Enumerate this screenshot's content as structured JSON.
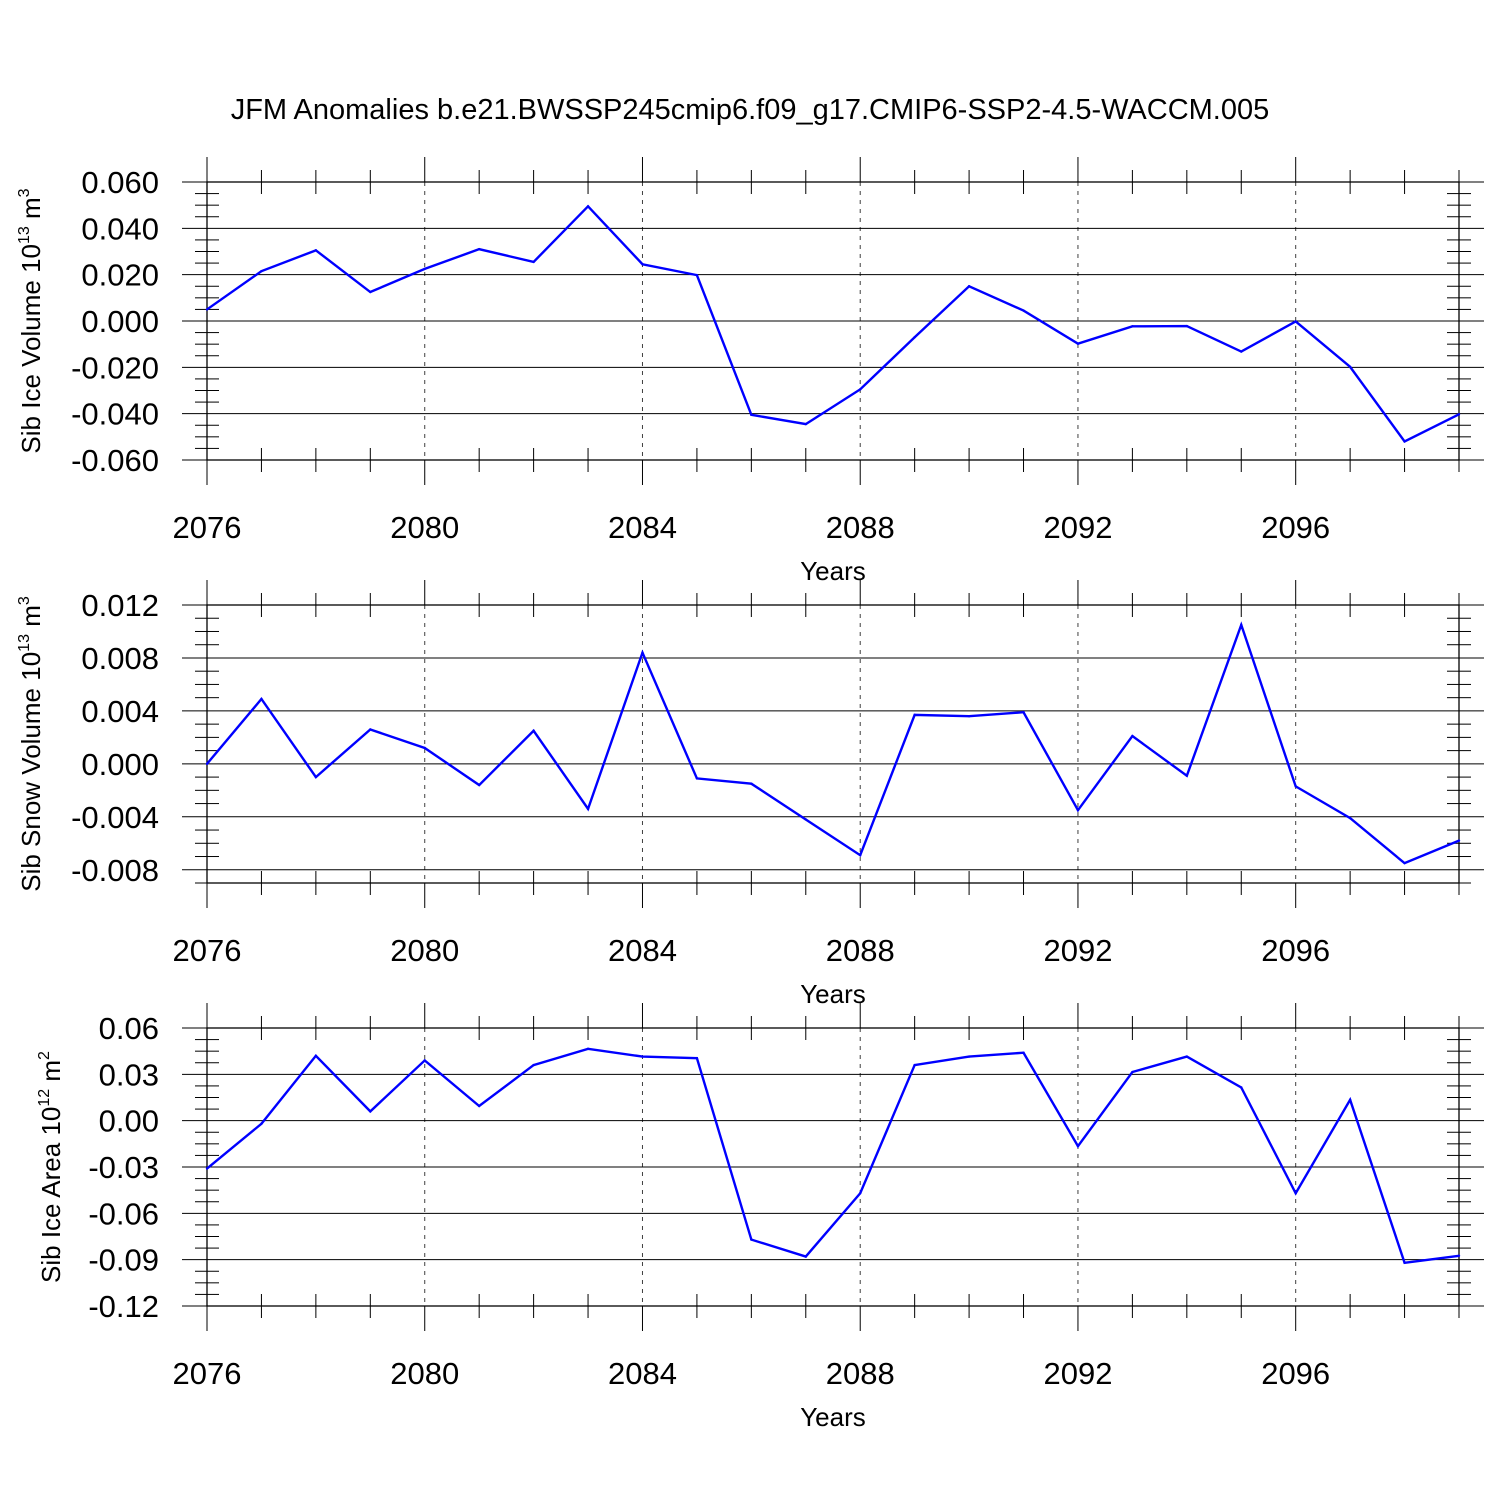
{
  "title": "JFM Anomalies b.e21.BWSSP245cmip6.f09_g17.CMIP6-SSP2-4.5-WACCM.005",
  "colors": {
    "line": "#0000ff",
    "axes": "#000000",
    "background": "#ffffff"
  },
  "chart_data": [
    {
      "type": "line",
      "ylabel": "Sib Ice Volume 10",
      "ylabel_exp": "13",
      "ylabel_unit": " m",
      "ylabel_unit_exp": "3",
      "xlabel": "Years",
      "xlim": [
        2076,
        2099
      ],
      "ylim": [
        -0.06,
        0.06
      ],
      "xticks": [
        2076,
        2080,
        2084,
        2088,
        2092,
        2096
      ],
      "xtick_labels": [
        "2076",
        "2080",
        "2084",
        "2088",
        "2092",
        "2096"
      ],
      "yticks": [
        0.06,
        0.04,
        0.02,
        0.0,
        -0.02,
        -0.04,
        -0.06
      ],
      "ytick_labels": [
        "0.060",
        "0.040",
        "0.020",
        "0.000",
        "-0.020",
        "-0.040",
        "-0.060"
      ],
      "x": [
        2076,
        2077,
        2078,
        2079,
        2080,
        2081,
        2082,
        2083,
        2084,
        2085,
        2086,
        2087,
        2088,
        2089,
        2090,
        2091,
        2092,
        2093,
        2094,
        2095,
        2096,
        2097,
        2098,
        2099
      ],
      "series": [
        {
          "name": "Sib Ice Volume",
          "values": [
            0.005,
            0.0215,
            0.0305,
            0.0125,
            0.0225,
            0.031,
            0.0255,
            0.0495,
            0.0245,
            0.0198,
            -0.0405,
            -0.0445,
            -0.0295,
            -0.007,
            0.015,
            0.0045,
            -0.0098,
            -0.0023,
            -0.0022,
            -0.0132,
            -0.0002,
            -0.0198,
            -0.052,
            -0.0403
          ]
        }
      ]
    },
    {
      "type": "line",
      "ylabel": "Sib Snow Volume 10",
      "ylabel_exp": "13",
      "ylabel_unit": " m",
      "ylabel_unit_exp": "3",
      "xlabel": "Years",
      "xlim": [
        2076,
        2099
      ],
      "ylim": [
        -0.009,
        0.012
      ],
      "xticks": [
        2076,
        2080,
        2084,
        2088,
        2092,
        2096
      ],
      "xtick_labels": [
        "2076",
        "2080",
        "2084",
        "2088",
        "2092",
        "2096"
      ],
      "yticks": [
        0.012,
        0.008,
        0.004,
        0.0,
        -0.004,
        -0.008
      ],
      "ytick_labels": [
        "0.012",
        "0.008",
        "0.004",
        "0.000",
        "-0.004",
        "-0.008"
      ],
      "x": [
        2076,
        2077,
        2078,
        2079,
        2080,
        2081,
        2082,
        2083,
        2084,
        2085,
        2086,
        2087,
        2088,
        2089,
        2090,
        2091,
        2092,
        2093,
        2094,
        2095,
        2096,
        2097,
        2098,
        2099
      ],
      "series": [
        {
          "name": "Sib Snow Volume",
          "values": [
            0.0,
            0.0049,
            -0.001,
            0.0026,
            0.0012,
            -0.0016,
            0.0025,
            -0.0034,
            0.0084,
            -0.0011,
            -0.0015,
            -0.0042,
            -0.0069,
            0.0037,
            0.0036,
            0.0039,
            -0.0035,
            0.0021,
            -0.0009,
            0.0105,
            -0.0017,
            -0.0041,
            -0.0075,
            -0.0058
          ]
        }
      ]
    },
    {
      "type": "line",
      "ylabel": "Sib Ice Area 10",
      "ylabel_exp": "12",
      "ylabel_unit": " m",
      "ylabel_unit_exp": "2",
      "xlabel": "Years",
      "xlim": [
        2076,
        2099
      ],
      "ylim": [
        -0.12,
        0.06
      ],
      "xticks": [
        2076,
        2080,
        2084,
        2088,
        2092,
        2096
      ],
      "xtick_labels": [
        "2076",
        "2080",
        "2084",
        "2088",
        "2092",
        "2096"
      ],
      "yticks": [
        0.06,
        0.03,
        0.0,
        -0.03,
        -0.06,
        -0.09,
        -0.12
      ],
      "ytick_labels": [
        "0.06",
        "0.03",
        "0.00",
        "-0.03",
        "-0.06",
        "-0.09",
        "-0.12"
      ],
      "x": [
        2076,
        2077,
        2078,
        2079,
        2080,
        2081,
        2082,
        2083,
        2084,
        2085,
        2086,
        2087,
        2088,
        2089,
        2090,
        2091,
        2092,
        2093,
        2094,
        2095,
        2096,
        2097,
        2098,
        2099
      ],
      "series": [
        {
          "name": "Sib Ice Area",
          "values": [
            -0.031,
            -0.002,
            0.042,
            0.006,
            0.039,
            0.0095,
            0.036,
            0.0465,
            0.0415,
            0.0405,
            -0.077,
            -0.088,
            -0.047,
            0.036,
            0.0415,
            0.044,
            -0.0165,
            0.0315,
            0.0415,
            0.0215,
            -0.047,
            0.0135,
            -0.092,
            -0.0875
          ]
        }
      ]
    }
  ]
}
